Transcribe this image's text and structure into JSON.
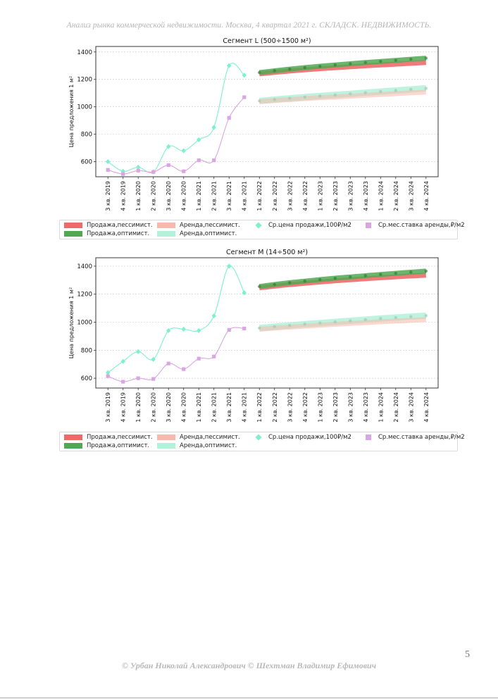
{
  "header": "Анализ рынка коммерческой недвижимости.  Москва,  4 квартал 2021 г.  СКЛАДСК. НЕДВИЖИМОСТЬ.",
  "footer": "© Урбан Николай Александрович   © Шехтман Владимир Ефимович",
  "page_number": "5",
  "colors": {
    "sale_pess": "#ee6a6a",
    "sale_opt": "#52a852",
    "rent_pess": "#f7b9ab",
    "rent_opt": "#b4f1da",
    "sale_marker": "#7ef0cf",
    "sale_line": "#7ef0cf",
    "rent_marker": "#d9a5e3",
    "rent_line": "#d9a5e3"
  },
  "legend": {
    "sale_pess": "Продажа,пессимист.",
    "sale_opt": "Продажа,оптимист.",
    "rent_pess": "Аренда,пессимист.",
    "rent_opt": "Аренда,оптимист.",
    "sale_avg": "Ср.цена продажи,100₽/м2",
    "rent_avg": "Ср.мес.ставка аренды,₽/м2"
  },
  "chart_data": [
    {
      "type": "line",
      "title": "Сегмент L (500÷1500 м²)",
      "ylabel": "Цена предложения 1 м²",
      "xlabel": "",
      "ylim": [
        490,
        1440
      ],
      "yticks": [
        600,
        800,
        1000,
        1200,
        1400
      ],
      "grid": "horizontal",
      "categories": [
        "3 кв. 2019",
        "4 кв. 2019",
        "1 кв. 2020",
        "2 кв. 2020",
        "3 кв. 2020",
        "4 кв. 2020",
        "1 кв. 2021",
        "2 кв. 2021",
        "3 кв. 2021",
        "4 кв. 2021",
        "1 кв. 2022",
        "2 кв. 2022",
        "3 кв. 2022",
        "4 кв. 2022",
        "1 кв. 2023",
        "2 кв. 2023",
        "3 кв. 2023",
        "4 кв. 2023",
        "1 кв. 2024",
        "2 кв. 2024",
        "3 кв. 2024",
        "4 кв. 2024"
      ],
      "series": [
        {
          "name": "Ср.цена продажи,100₽/м2",
          "values": [
            600,
            530,
            560,
            525,
            710,
            680,
            760,
            850,
            1300,
            1230,
            null,
            null,
            null,
            null,
            null,
            null,
            null,
            null,
            null,
            null,
            null,
            null
          ]
        },
        {
          "name": "Ср.мес.ставка аренды,₽/м2",
          "values": [
            540,
            510,
            535,
            525,
            575,
            530,
            610,
            610,
            920,
            1070,
            null,
            null,
            null,
            null,
            null,
            null,
            null,
            null,
            null,
            null,
            null,
            null
          ]
        },
        {
          "name": "Продажа,пессимист.",
          "values": [
            null,
            null,
            null,
            null,
            null,
            null,
            null,
            null,
            null,
            null,
            1240,
            1251,
            1261,
            1270,
            1278,
            1285,
            1292,
            1299,
            1305,
            1311,
            1317,
            1323
          ]
        },
        {
          "name": "Продажа,оптимист.",
          "values": [
            null,
            null,
            null,
            null,
            null,
            null,
            null,
            null,
            null,
            null,
            1250,
            1263,
            1275,
            1286,
            1296,
            1305,
            1314,
            1323,
            1331,
            1339,
            1347,
            1355
          ]
        },
        {
          "name": "Аренда,пессимист.",
          "values": [
            null,
            null,
            null,
            null,
            null,
            null,
            null,
            null,
            null,
            null,
            1038,
            1046,
            1053,
            1060,
            1066,
            1072,
            1078,
            1084,
            1090,
            1096,
            1102,
            1108
          ]
        },
        {
          "name": "Аренда,оптимист.",
          "values": [
            null,
            null,
            null,
            null,
            null,
            null,
            null,
            null,
            null,
            null,
            1043,
            1053,
            1062,
            1071,
            1079,
            1087,
            1095,
            1103,
            1111,
            1119,
            1127,
            1135
          ]
        }
      ]
    },
    {
      "type": "line",
      "title": "Сегмент M (14÷500 м²)",
      "ylabel": "Цена предложения 1 м²",
      "xlabel": "",
      "ylim": [
        530,
        1460
      ],
      "yticks": [
        600,
        800,
        1000,
        1200,
        1400
      ],
      "grid": "horizontal",
      "categories": [
        "3 кв. 2019",
        "4 кв. 2019",
        "1 кв. 2020",
        "2 кв. 2020",
        "3 кв. 2020",
        "4 кв. 2020",
        "1 кв. 2021",
        "2 кв. 2021",
        "3 кв. 2021",
        "4 кв. 2021",
        "1 кв. 2022",
        "2 кв. 2022",
        "3 кв. 2022",
        "4 кв. 2022",
        "1 кв. 2023",
        "2 кв. 2023",
        "3 кв. 2023",
        "4 кв. 2023",
        "1 кв. 2024",
        "2 кв. 2024",
        "3 кв. 2024",
        "4 кв. 2024"
      ],
      "series": [
        {
          "name": "Ср.цена продажи,100₽/м2",
          "values": [
            640,
            720,
            790,
            735,
            940,
            950,
            940,
            1045,
            1400,
            1210,
            null,
            null,
            null,
            null,
            null,
            null,
            null,
            null,
            null,
            null,
            null,
            null
          ]
        },
        {
          "name": "Ср.мес.ставка аренды,₽/м2",
          "values": [
            615,
            575,
            600,
            595,
            705,
            665,
            740,
            755,
            945,
            955,
            null,
            null,
            null,
            null,
            null,
            null,
            null,
            null,
            null,
            null,
            null,
            null
          ]
        },
        {
          "name": "Продажа,пессимист.",
          "values": [
            null,
            null,
            null,
            null,
            null,
            null,
            null,
            null,
            null,
            null,
            1245,
            1257,
            1268,
            1278,
            1287,
            1295,
            1303,
            1310,
            1317,
            1324,
            1330,
            1336
          ]
        },
        {
          "name": "Продажа,оптимист.",
          "values": [
            null,
            null,
            null,
            null,
            null,
            null,
            null,
            null,
            null,
            null,
            1255,
            1269,
            1282,
            1293,
            1304,
            1314,
            1323,
            1332,
            1341,
            1349,
            1357,
            1365
          ]
        },
        {
          "name": "Аренда,пессимист.",
          "values": [
            null,
            null,
            null,
            null,
            null,
            null,
            null,
            null,
            null,
            null,
            950,
            958,
            965,
            972,
            979,
            985,
            991,
            997,
            1003,
            1008,
            1013,
            1018
          ]
        },
        {
          "name": "Аренда,оптимист.",
          "values": [
            null,
            null,
            null,
            null,
            null,
            null,
            null,
            null,
            null,
            null,
            958,
            968,
            977,
            986,
            994,
            1002,
            1010,
            1018,
            1026,
            1033,
            1040,
            1047
          ]
        }
      ]
    }
  ]
}
